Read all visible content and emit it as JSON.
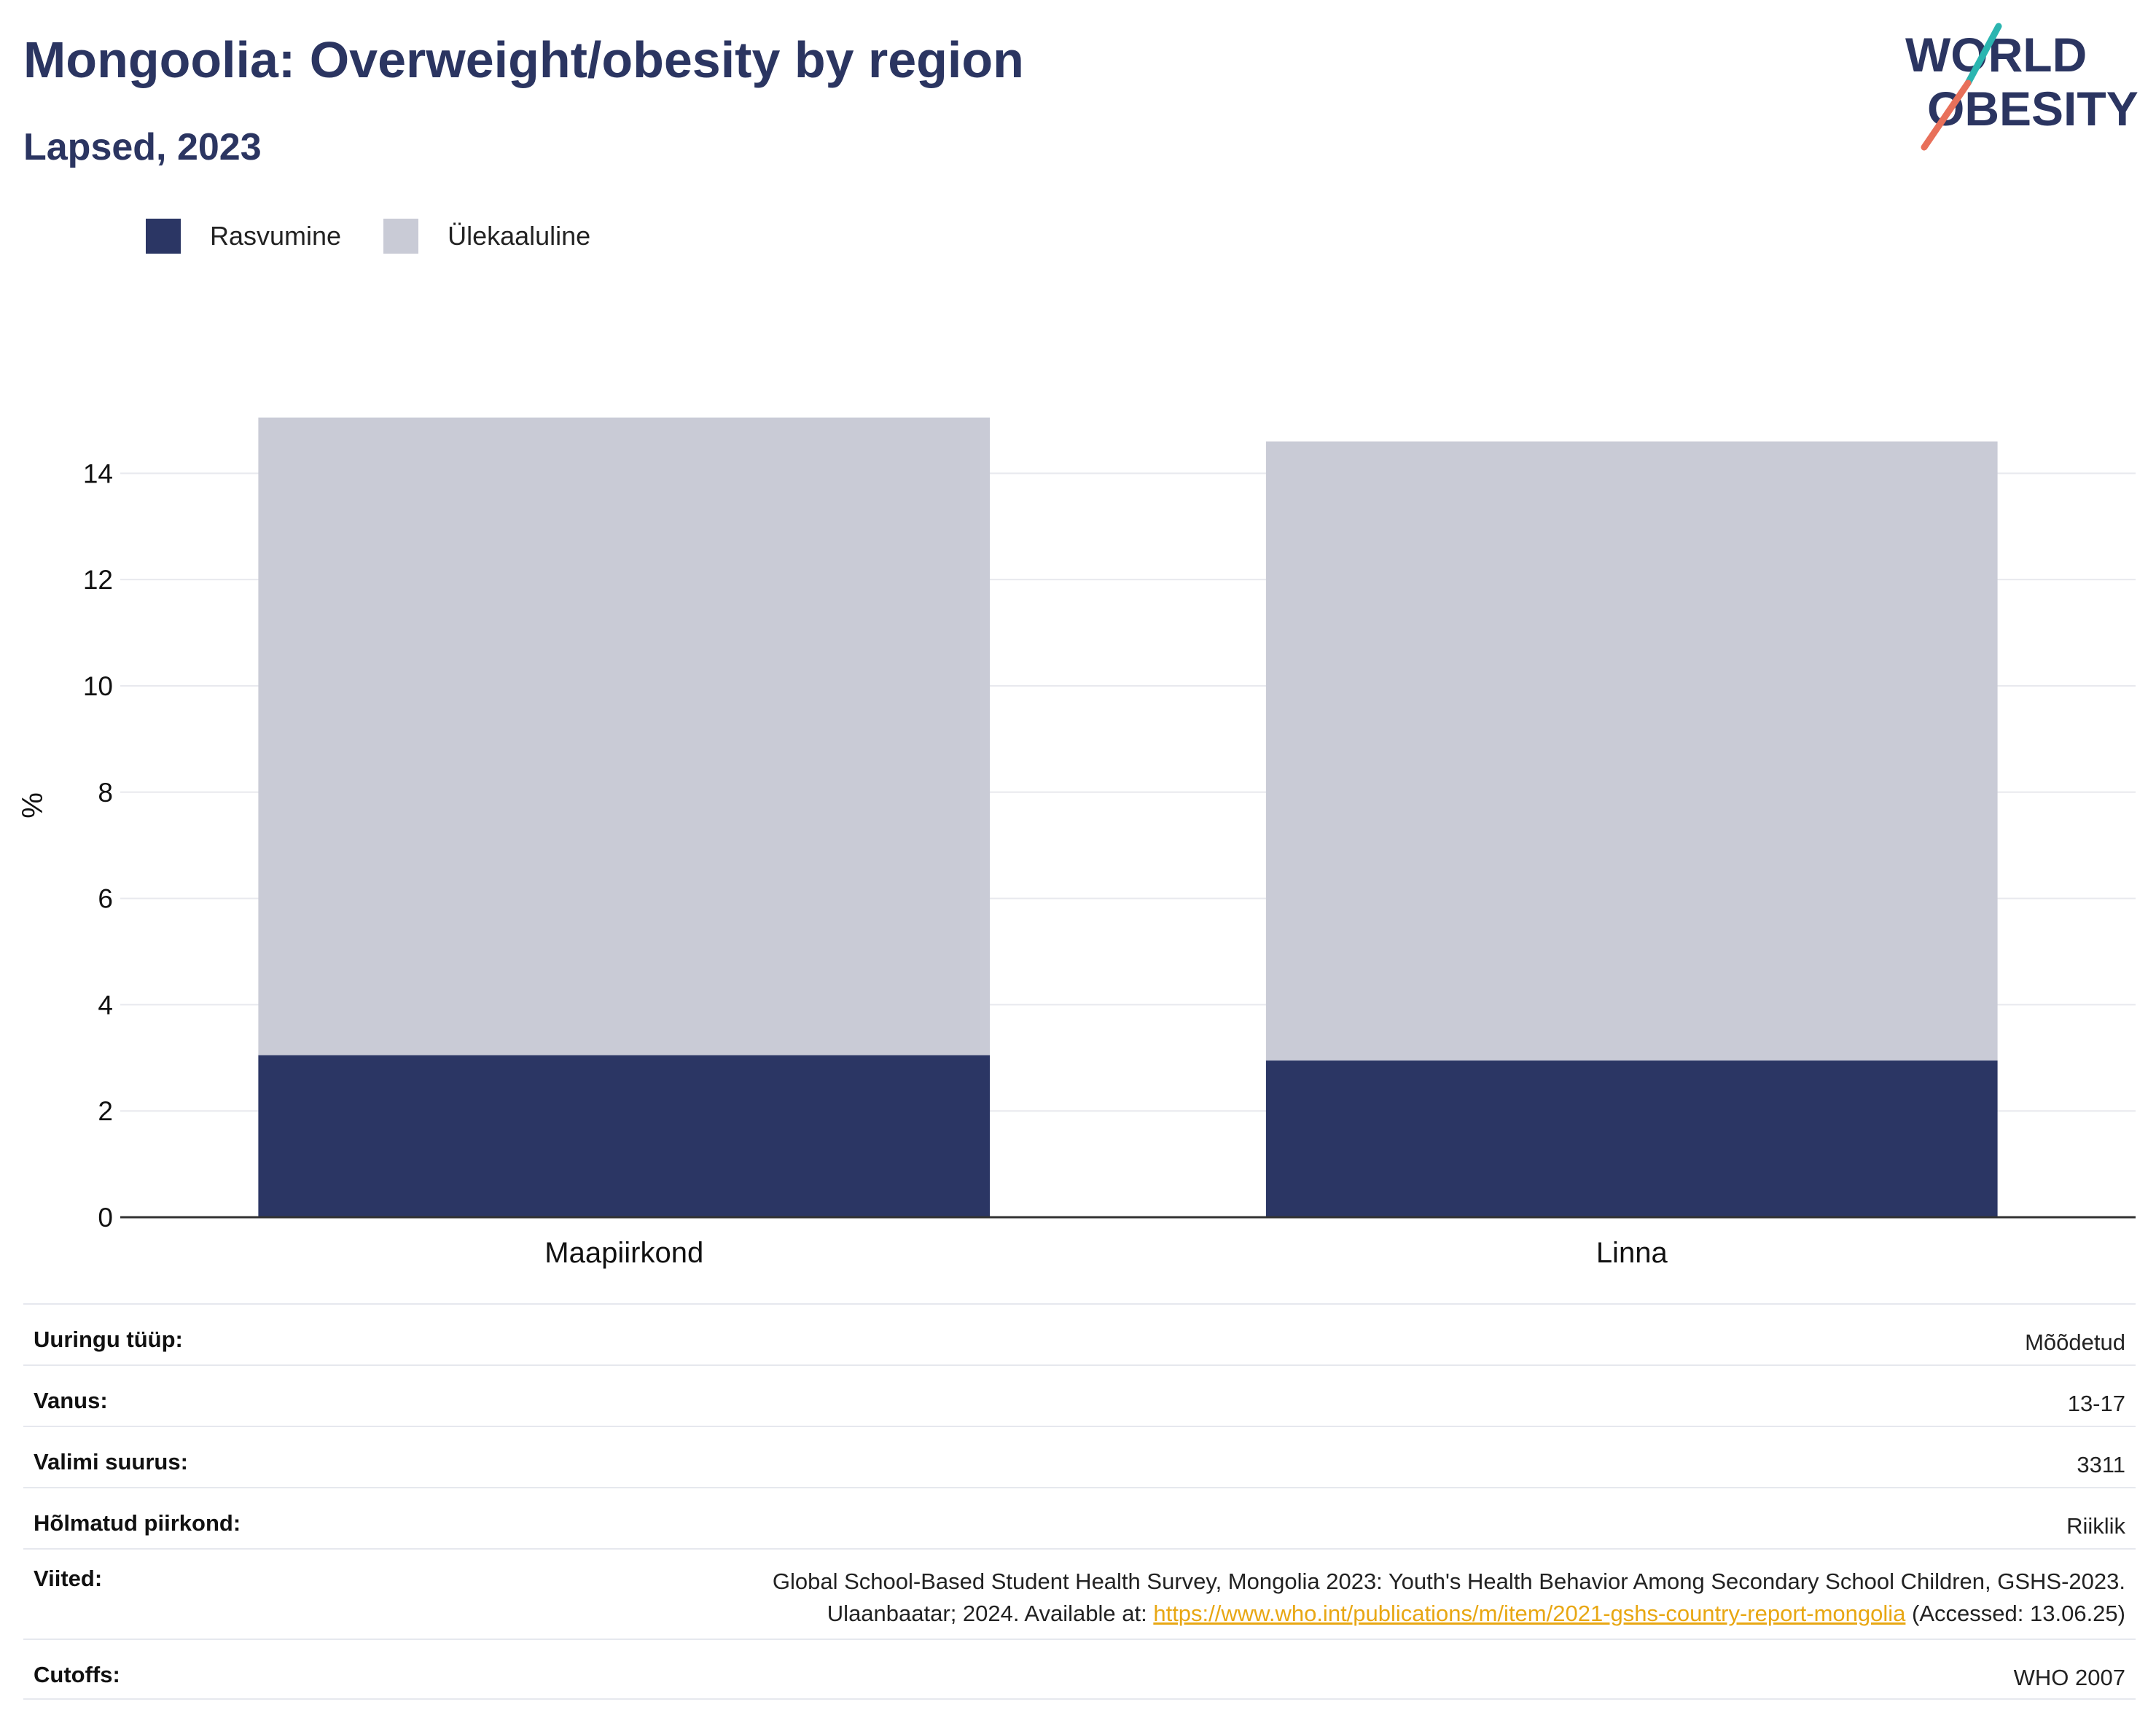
{
  "header": {
    "title": "Mongoolia: Overweight/obesity by region",
    "subtitle": "Lapsed, 2023",
    "logo_line1": "WORLD",
    "logo_line2": "OBESITY"
  },
  "colors": {
    "obesity": "#2b3664",
    "overweight": "#c9cbd6",
    "title": "#2b3561",
    "link": "#e8a713"
  },
  "chart_data": {
    "type": "bar",
    "stacked": true,
    "categories": [
      "Maapiirkond",
      "Linna"
    ],
    "series": [
      {
        "name": "Rasvumine",
        "values": [
          3.05,
          2.95
        ],
        "color": "#2b3664"
      },
      {
        "name": "Ülekaaluline",
        "values": [
          12.0,
          11.65
        ],
        "color": "#c9cbd6"
      }
    ],
    "ylabel": "%",
    "ylim": [
      0,
      15.5
    ],
    "yticks": [
      0,
      2,
      4,
      6,
      8,
      10,
      12,
      14
    ],
    "grid": true,
    "legend_position": "top-left"
  },
  "info_table": {
    "rows": [
      {
        "label": "Uuringu tüüp:",
        "value": "Mõõdetud"
      },
      {
        "label": "Vanus:",
        "value": "13-17"
      },
      {
        "label": "Valimi suurus:",
        "value": "3311"
      },
      {
        "label": "Hõlmatud piirkond:",
        "value": "Riiklik"
      },
      {
        "label": "Cutoffs:",
        "value": "WHO 2007"
      }
    ],
    "references": {
      "label": "Viited:",
      "text_line1": "Global School-Based Student Health Survey, Mongolia 2023: Youth's Health Behavior Among Secondary School Children, GSHS-2023.",
      "text_line2_prefix": "Ulaanbaatar; 2024. Available at:",
      "link": "https://www.who.int/publications/m/item/2021-gshs-country-report-mongolia",
      "text_line2_suffix": "(Accessed: 13.06.25)"
    }
  }
}
